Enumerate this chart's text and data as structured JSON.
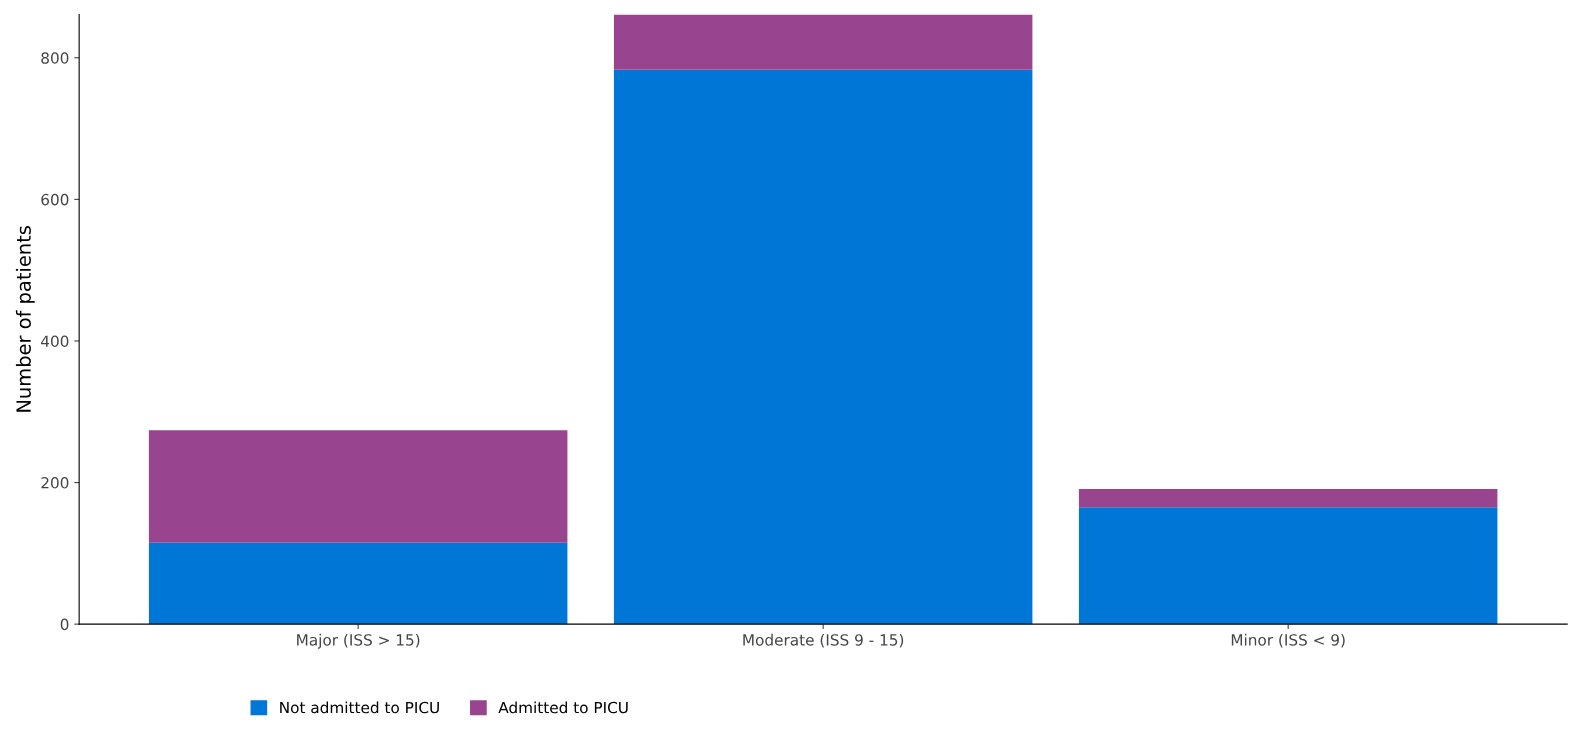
{
  "chart_data": {
    "type": "bar",
    "stacked": true,
    "ylabel": "Number of patients",
    "categories": [
      "Major (ISS > 15)",
      "Moderate (ISS 9 - 15)",
      "Minor (ISS < 9)"
    ],
    "series": [
      {
        "name": "Not admitted to PICU",
        "color": "#0077d6",
        "values": [
          115,
          783,
          165
        ]
      },
      {
        "name": "Admitted to PICU",
        "color": "#99448f",
        "values": [
          159,
          78,
          26
        ]
      }
    ],
    "ylim": [
      0,
      861
    ],
    "yticks": [
      0,
      200,
      400,
      600,
      800
    ],
    "grid": false,
    "legend": "bottom left"
  }
}
